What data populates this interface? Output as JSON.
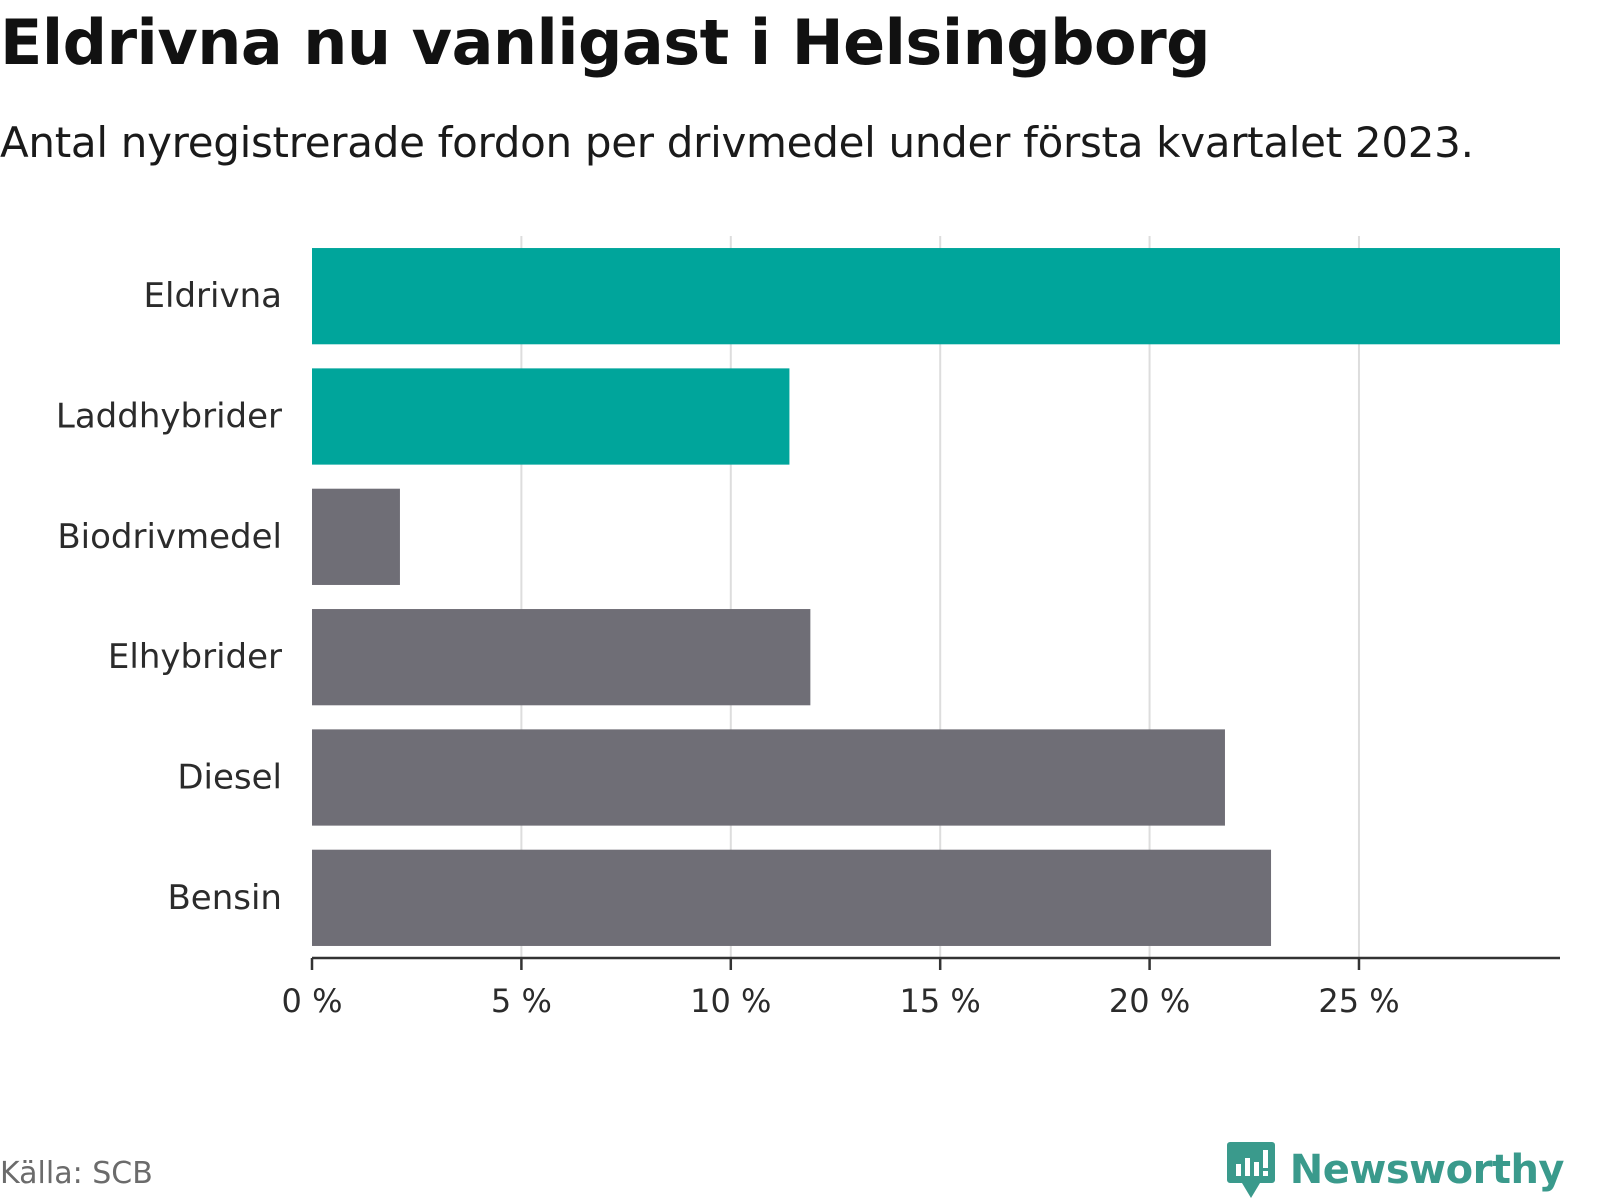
{
  "title": "Eldrivna nu vanligast i Helsingborg",
  "subtitle": "Antal nyregistrerade fordon per drivmedel under första kvartalet 2023.",
  "source": "Källa: SCB",
  "brand": "Newsworthy",
  "colors": {
    "highlight": "#00a59b",
    "default": "#6f6e76",
    "grid": "#dddddd",
    "axis": "#333333",
    "brand": "#3a9a8c"
  },
  "chart_data": {
    "type": "bar",
    "orientation": "horizontal",
    "categories": [
      "Eldrivna",
      "Laddhybrider",
      "Biodrivmedel",
      "Elhybrider",
      "Diesel",
      "Bensin"
    ],
    "values": [
      29.8,
      11.4,
      2.1,
      11.9,
      21.8,
      22.9
    ],
    "highlighted": [
      true,
      true,
      false,
      false,
      false,
      false
    ],
    "xlim": [
      0,
      29.8
    ],
    "xticks": [
      0,
      5,
      10,
      15,
      20,
      25
    ],
    "xtick_labels": [
      "0 %",
      "5 %",
      "10 %",
      "15 %",
      "20 %",
      "25 %"
    ],
    "grid": true
  }
}
